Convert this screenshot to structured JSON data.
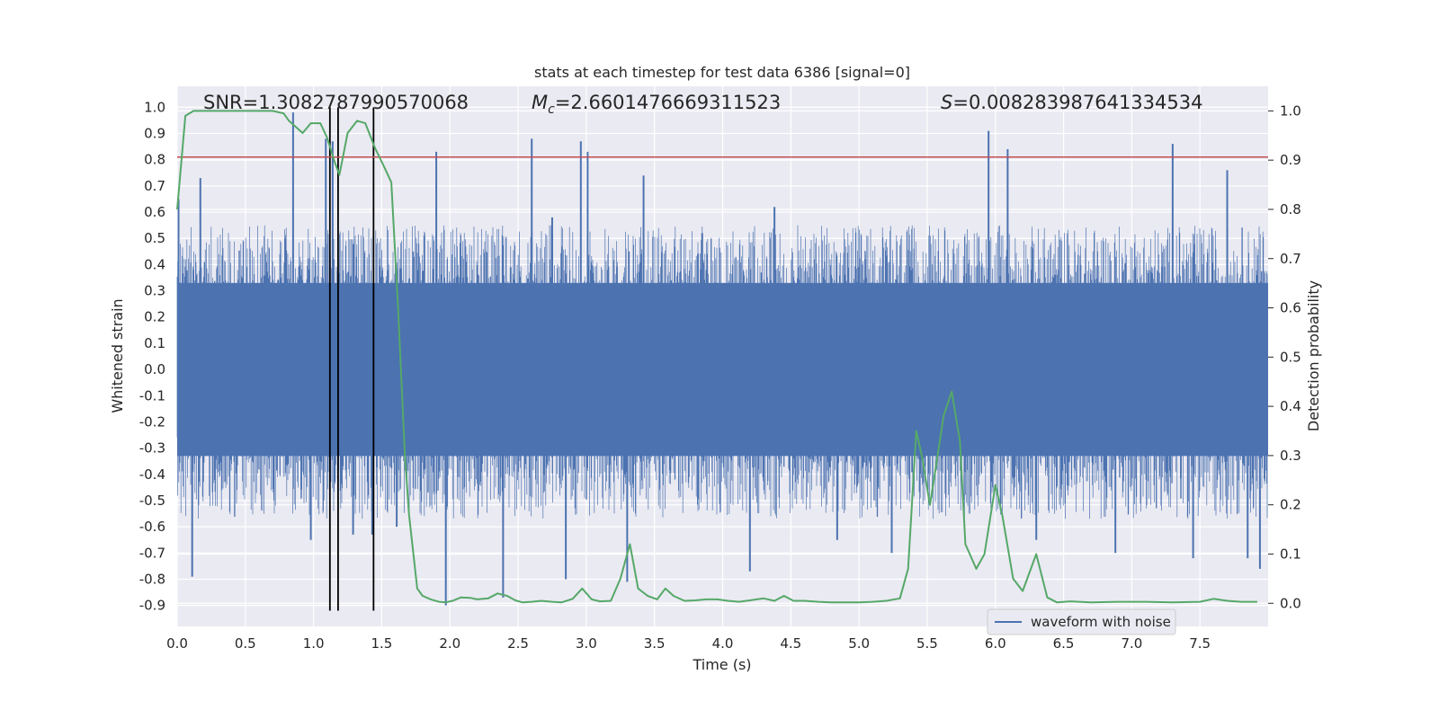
{
  "chart_data": {
    "type": "line",
    "title": "stats at each timestep for test data 6386 [signal=0]",
    "xlabel": "Time (s)",
    "ylabel": "Whitened strain",
    "y2label": "Detection probability",
    "xlim": [
      0,
      8
    ],
    "ylim": [
      -0.98,
      1.08
    ],
    "y2lim": [
      -0.047,
      1.05
    ],
    "x_ticks": [
      "0.0",
      "0.5",
      "1.0",
      "1.5",
      "2.0",
      "2.5",
      "3.0",
      "3.5",
      "4.0",
      "4.5",
      "5.0",
      "5.5",
      "6.0",
      "6.5",
      "7.0",
      "7.5"
    ],
    "y_ticks": [
      "1.0",
      "0.9",
      "0.8",
      "0.7",
      "0.6",
      "0.5",
      "0.4",
      "0.3",
      "0.2",
      "0.1",
      "0.0",
      "-0.1",
      "-0.2",
      "-0.3",
      "-0.4",
      "-0.5",
      "-0.6",
      "-0.7",
      "-0.8",
      "-0.9"
    ],
    "y2_ticks": [
      "1.0",
      "0.9",
      "0.8",
      "0.7",
      "0.6",
      "0.5",
      "0.4",
      "0.3",
      "0.2",
      "0.1",
      "0.0"
    ],
    "grid": true,
    "legend_position": "lower-right",
    "annotations": {
      "snr": "SNR=1.3082787990570068",
      "mc_symbol": "M",
      "mc_sub": "c",
      "mc_value": "=2.6601476669311523",
      "s_symbol": "S",
      "s_value": "=0.008283987641334534"
    },
    "series": [
      {
        "name": "waveform with noise",
        "axis": "left",
        "color": "#4c72b0",
        "kind": "noise-band",
        "core_range": [
          -0.33,
          0.33
        ],
        "spikes": [
          [
            0.01,
            0.65
          ],
          [
            0.17,
            0.73
          ],
          [
            0.11,
            -0.79
          ],
          [
            0.85,
            0.98
          ],
          [
            0.98,
            -0.65
          ],
          [
            1.09,
            0.88
          ],
          [
            1.14,
            0.87
          ],
          [
            1.29,
            -0.63
          ],
          [
            1.43,
            -0.63
          ],
          [
            1.61,
            -0.6
          ],
          [
            1.9,
            0.83
          ],
          [
            1.97,
            -0.9
          ],
          [
            2.39,
            -0.87
          ],
          [
            2.6,
            0.88
          ],
          [
            2.75,
            0.58
          ],
          [
            2.85,
            -0.8
          ],
          [
            2.96,
            0.87
          ],
          [
            3.01,
            0.83
          ],
          [
            3.3,
            -0.81
          ],
          [
            3.42,
            0.74
          ],
          [
            3.85,
            0.52
          ],
          [
            4.2,
            -0.77
          ],
          [
            4.38,
            0.62
          ],
          [
            4.84,
            -0.65
          ],
          [
            5.24,
            -0.7
          ],
          [
            5.95,
            0.91
          ],
          [
            6.09,
            0.84
          ],
          [
            6.3,
            -0.65
          ],
          [
            6.88,
            -0.7
          ],
          [
            7.3,
            0.86
          ],
          [
            7.45,
            -0.72
          ],
          [
            7.7,
            0.76
          ],
          [
            7.85,
            -0.72
          ],
          [
            7.94,
            -0.76
          ]
        ]
      },
      {
        "name": "detection probability",
        "axis": "right",
        "color": "#55a868",
        "x": [
          0.0,
          0.06,
          0.12,
          0.2,
          0.3,
          0.4,
          0.5,
          0.6,
          0.7,
          0.78,
          0.82,
          0.92,
          0.98,
          1.05,
          1.1,
          1.15,
          1.19,
          1.25,
          1.32,
          1.38,
          1.45,
          1.52,
          1.57,
          1.62,
          1.67,
          1.7,
          1.76,
          1.8,
          1.86,
          1.92,
          1.97,
          2.02,
          2.08,
          2.15,
          2.2,
          2.28,
          2.35,
          2.42,
          2.48,
          2.53,
          2.6,
          2.67,
          2.75,
          2.82,
          2.9,
          2.97,
          3.04,
          3.1,
          3.18,
          3.25,
          3.32,
          3.38,
          3.45,
          3.52,
          3.58,
          3.64,
          3.72,
          3.8,
          3.88,
          3.96,
          4.04,
          4.12,
          4.2,
          4.3,
          4.38,
          4.45,
          4.52,
          4.6,
          4.7,
          4.8,
          5.0,
          5.1,
          5.2,
          5.3,
          5.36,
          5.42,
          5.46,
          5.52,
          5.56,
          5.62,
          5.68,
          5.74,
          5.78,
          5.86,
          5.92,
          6.0,
          6.05,
          6.13,
          6.2,
          6.3,
          6.38,
          6.45,
          6.55,
          6.7,
          6.9,
          7.1,
          7.3,
          7.5,
          7.6,
          7.7,
          7.8,
          7.92
        ],
        "y": [
          0.8,
          0.99,
          1.0,
          1.0,
          1.0,
          1.0,
          1.0,
          1.0,
          1.0,
          0.995,
          0.98,
          0.955,
          0.975,
          0.975,
          0.945,
          0.9,
          0.87,
          0.955,
          0.98,
          0.975,
          0.925,
          0.885,
          0.855,
          0.6,
          0.3,
          0.18,
          0.03,
          0.015,
          0.008,
          0.003,
          0.002,
          0.005,
          0.012,
          0.011,
          0.008,
          0.01,
          0.02,
          0.015,
          0.006,
          0.002,
          0.003,
          0.005,
          0.003,
          0.002,
          0.009,
          0.03,
          0.008,
          0.004,
          0.005,
          0.05,
          0.12,
          0.03,
          0.015,
          0.008,
          0.03,
          0.015,
          0.005,
          0.006,
          0.008,
          0.008,
          0.005,
          0.003,
          0.006,
          0.01,
          0.005,
          0.015,
          0.005,
          0.005,
          0.003,
          0.002,
          0.002,
          0.003,
          0.005,
          0.01,
          0.07,
          0.35,
          0.3,
          0.2,
          0.27,
          0.38,
          0.43,
          0.33,
          0.12,
          0.07,
          0.1,
          0.24,
          0.18,
          0.05,
          0.025,
          0.1,
          0.012,
          0.002,
          0.004,
          0.002,
          0.003,
          0.003,
          0.002,
          0.003,
          0.009,
          0.005,
          0.003,
          0.003
        ]
      }
    ],
    "threshold_line": {
      "axis": "left",
      "y": 0.81,
      "color": "#c44e52"
    },
    "vertical_lines": {
      "x": [
        1.12,
        1.18,
        1.44
      ],
      "y_range": [
        -0.92,
        1.0
      ],
      "color": "#000000"
    }
  }
}
